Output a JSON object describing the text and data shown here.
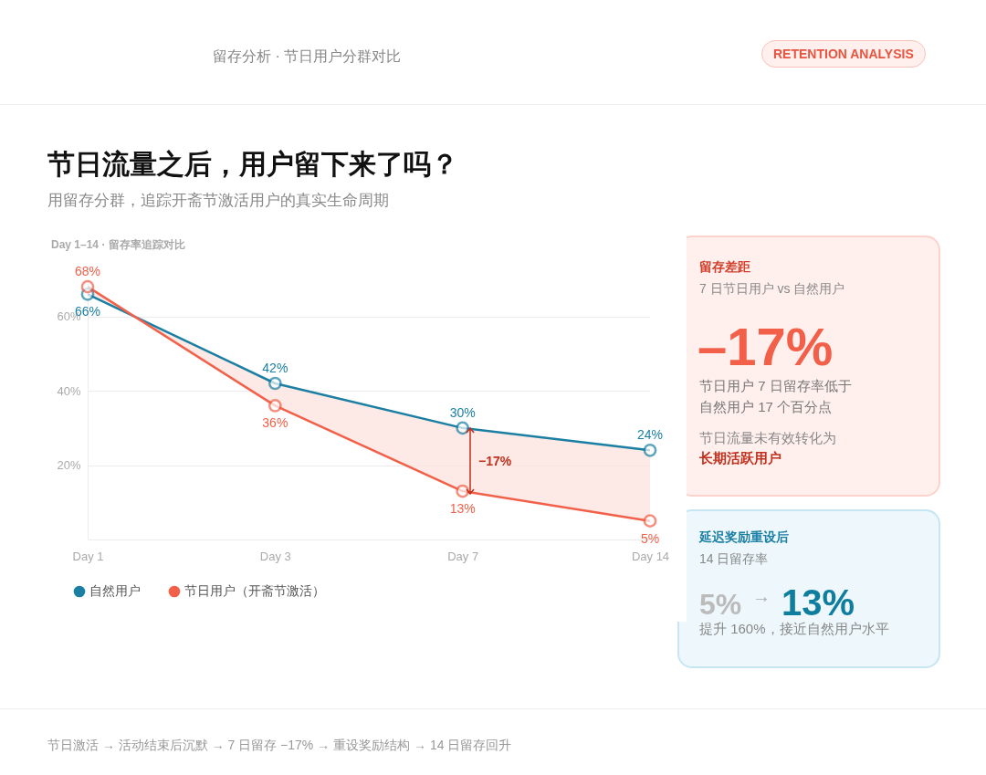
{
  "chart_data": [
    {
      "type": "line",
      "title": "节日流量之后，用户留下来了吗？",
      "subtitle": "用留存分群，追踪开斋节激活用户的真实生命周期",
      "annotations": [
        "留存分析 · 节日用户分群对比",
        "RETENTION ANALYSIS",
        "Day 1–14 · 留存率追踪对比",
        "−17%",
        "节日激活 → 活动结束后沉默 → 7 日留存 −17% → 重设奖励结构 → 14 日留存回升"
      ],
      "categories": [
        "Day 1",
        "Day 3",
        "Day 7",
        "Day 14"
      ],
      "ylim": [
        0,
        70
      ],
      "yticks": [
        {
          "value": 0,
          "label": null
        },
        {
          "value": 20,
          "label": "20%"
        },
        {
          "value": 40,
          "label": "40%"
        },
        {
          "value": 60,
          "label": "60%"
        }
      ],
      "grid": "y",
      "legend": "bottom",
      "marker": "circle",
      "line_style": "solid",
      "series": [
        {
          "name": "自然用户",
          "color": "#1a7fa3",
          "values": [
            66,
            42,
            30,
            24
          ],
          "value_labels": [
            "66%",
            "42%",
            "30%",
            "24%"
          ]
        },
        {
          "name": "节日用户（开斋节激活）",
          "color": "#f2604a",
          "values": [
            68,
            36,
            13,
            5
          ],
          "value_labels": [
            "68%",
            "36%",
            "13%",
            "5%"
          ],
          "lower": [
            68,
            36,
            13,
            5
          ],
          "upper": [
            66,
            42,
            30,
            24
          ]
        }
      ]
    },
    {
      "type": "other",
      "title": "留存差距",
      "subtitle": "7 日节日用户 vs 自然用户",
      "annotations": [
        "–17%",
        "节日用户 7 日留存率低于",
        "自然用户 17 个百分点",
        "节日流量未有效转化为",
        "长期活跃用户"
      ]
    },
    {
      "type": "other",
      "title": "延迟奖励重设后",
      "subtitle": "14 日留存率",
      "annotations": [
        "5%",
        "→",
        "13%",
        "提升 160%，接近自然用户水平"
      ]
    }
  ]
}
